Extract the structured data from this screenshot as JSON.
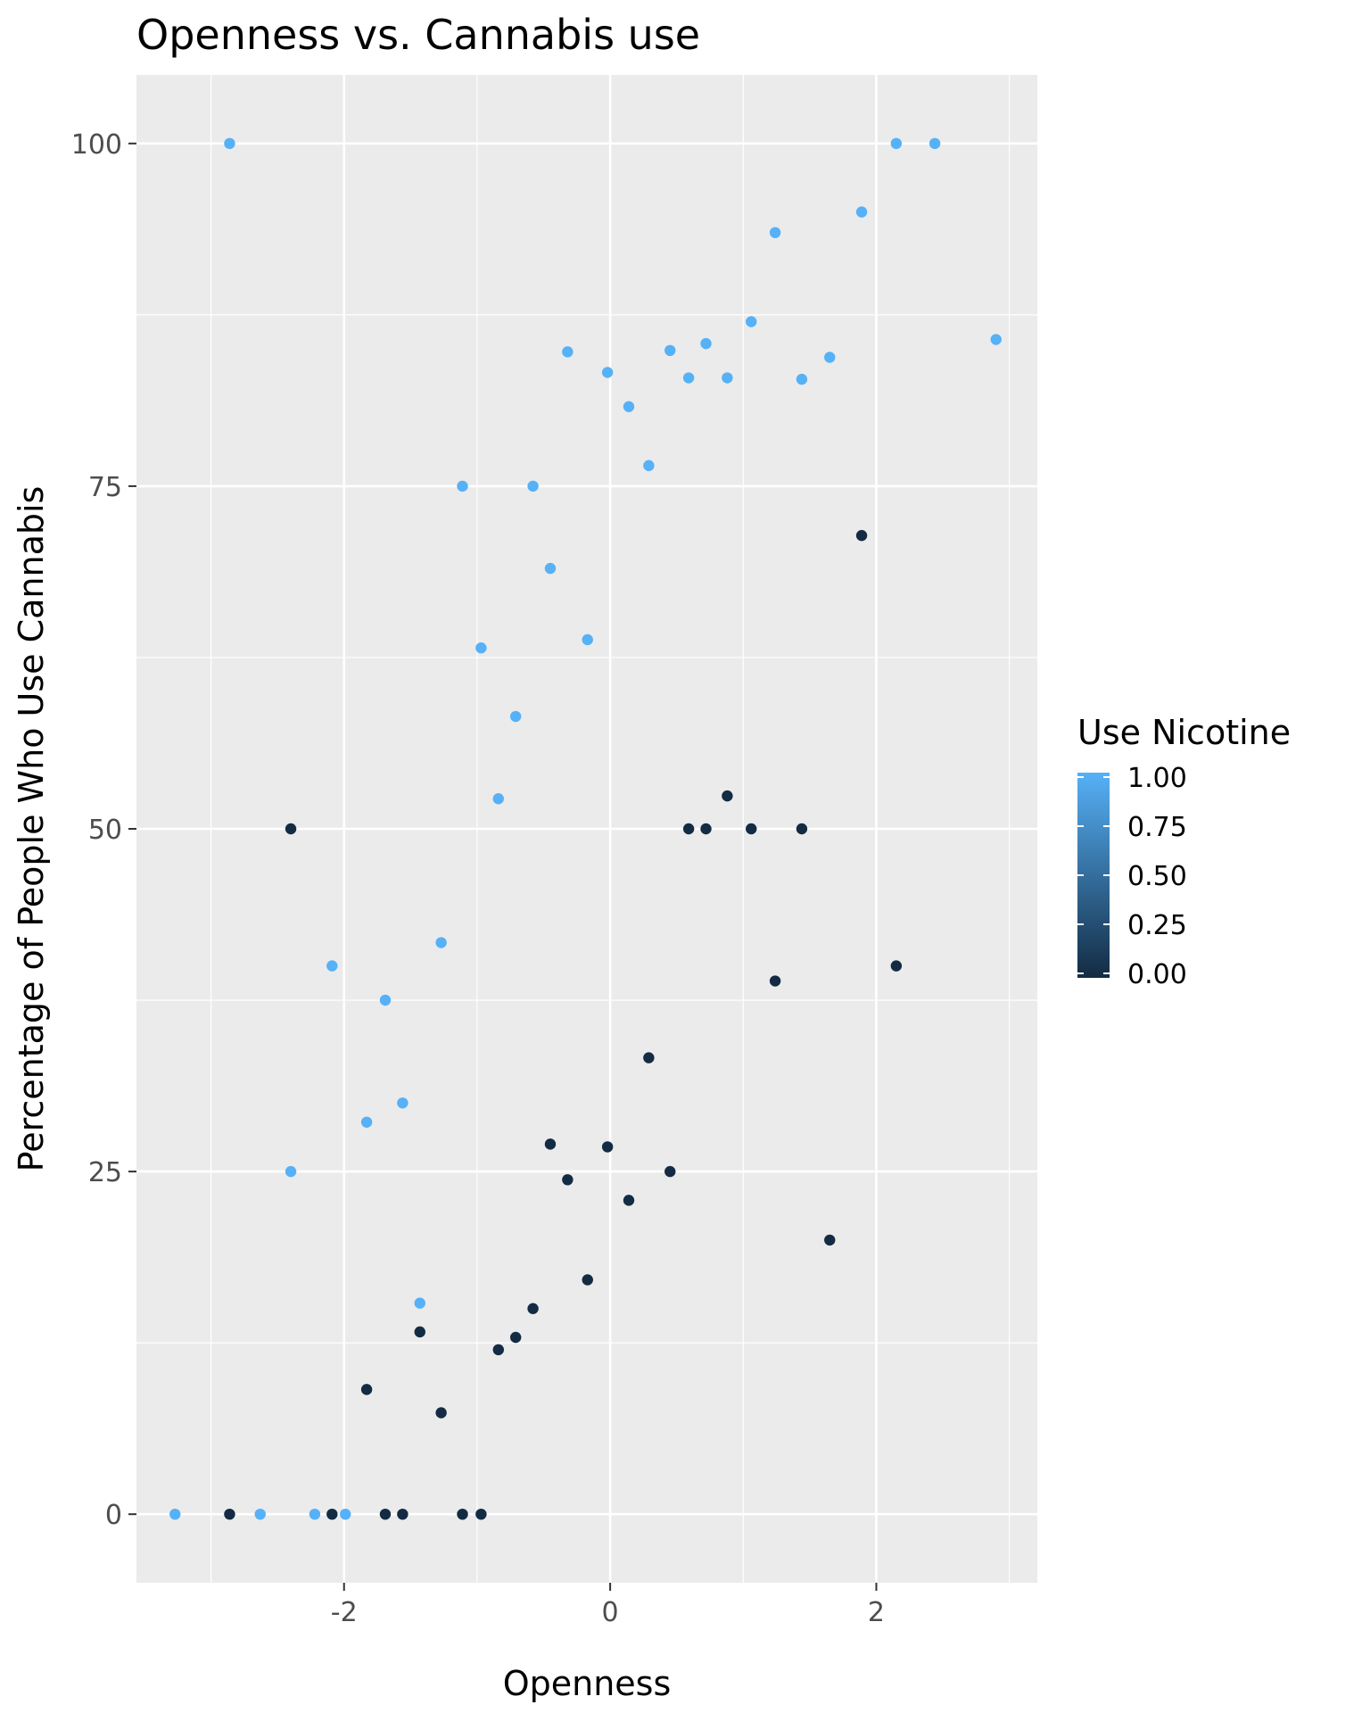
{
  "chart_data": {
    "type": "scatter",
    "title": "Openness vs. Cannabis use",
    "xlabel": "Openness",
    "ylabel": "Percentage of People Who Use Cannabis",
    "xlim": [
      -3.56,
      3.21
    ],
    "ylim": [
      -5.0,
      105.0
    ],
    "x_ticks": [
      -2,
      0,
      2
    ],
    "x_tick_labels": [
      "-2",
      "0",
      "2"
    ],
    "y_ticks": [
      0,
      25,
      50,
      75,
      100
    ],
    "y_tick_labels": [
      "0",
      "25",
      "50",
      "75",
      "100"
    ],
    "grid": true,
    "legend": {
      "title": "Use Nicotine",
      "position": "right",
      "type": "colorbar",
      "range": [
        0.0,
        1.0
      ],
      "labels": [
        "1.00",
        "0.75",
        "0.50",
        "0.25",
        "0.00"
      ],
      "color_low": "#132b43",
      "color_high": "#56b1f7"
    },
    "series": [
      {
        "use_nicotine": 1,
        "color": "#56b1f7",
        "points": [
          [
            -3.27,
            0
          ],
          [
            -2.86,
            100
          ],
          [
            -2.63,
            0
          ],
          [
            -2.22,
            0
          ],
          [
            -1.99,
            0
          ],
          [
            -2.4,
            25
          ],
          [
            -2.09,
            40
          ],
          [
            -1.83,
            28.6
          ],
          [
            -1.69,
            37.5
          ],
          [
            -1.56,
            30
          ],
          [
            -1.43,
            15.4
          ],
          [
            -1.27,
            41.7
          ],
          [
            -1.11,
            75
          ],
          [
            -0.97,
            63.2
          ],
          [
            -0.84,
            52.2
          ],
          [
            -0.71,
            58.2
          ],
          [
            -0.58,
            75
          ],
          [
            -0.45,
            69
          ],
          [
            -0.32,
            84.8
          ],
          [
            -0.17,
            63.8
          ],
          [
            -0.02,
            83.3
          ],
          [
            0.14,
            80.8
          ],
          [
            0.29,
            76.5
          ],
          [
            0.45,
            84.9
          ],
          [
            0.59,
            82.9
          ],
          [
            0.72,
            85.4
          ],
          [
            0.88,
            82.9
          ],
          [
            1.06,
            87
          ],
          [
            1.24,
            93.5
          ],
          [
            1.44,
            82.8
          ],
          [
            1.65,
            84.4
          ],
          [
            1.89,
            95
          ],
          [
            2.15,
            100
          ],
          [
            2.44,
            100
          ],
          [
            2.9,
            85.7
          ]
        ]
      },
      {
        "use_nicotine": 0,
        "color": "#132b43",
        "points": [
          [
            -2.86,
            0
          ],
          [
            -2.09,
            0
          ],
          [
            -1.69,
            0
          ],
          [
            -1.56,
            0
          ],
          [
            -1.11,
            0
          ],
          [
            -0.97,
            0
          ],
          [
            -2.4,
            50
          ],
          [
            -1.83,
            9.1
          ],
          [
            -1.43,
            13.3
          ],
          [
            -1.27,
            7.4
          ],
          [
            -0.84,
            12
          ],
          [
            -0.71,
            12.9
          ],
          [
            -0.58,
            15
          ],
          [
            -0.45,
            27
          ],
          [
            -0.32,
            24.4
          ],
          [
            -0.17,
            17.1
          ],
          [
            -0.02,
            26.8
          ],
          [
            0.14,
            22.9
          ],
          [
            0.29,
            33.3
          ],
          [
            0.45,
            25
          ],
          [
            0.59,
            50
          ],
          [
            0.72,
            50
          ],
          [
            0.88,
            52.4
          ],
          [
            1.06,
            50
          ],
          [
            1.24,
            38.9
          ],
          [
            1.44,
            50
          ],
          [
            1.65,
            20
          ],
          [
            1.89,
            71.4
          ],
          [
            2.15,
            40
          ]
        ]
      }
    ]
  }
}
